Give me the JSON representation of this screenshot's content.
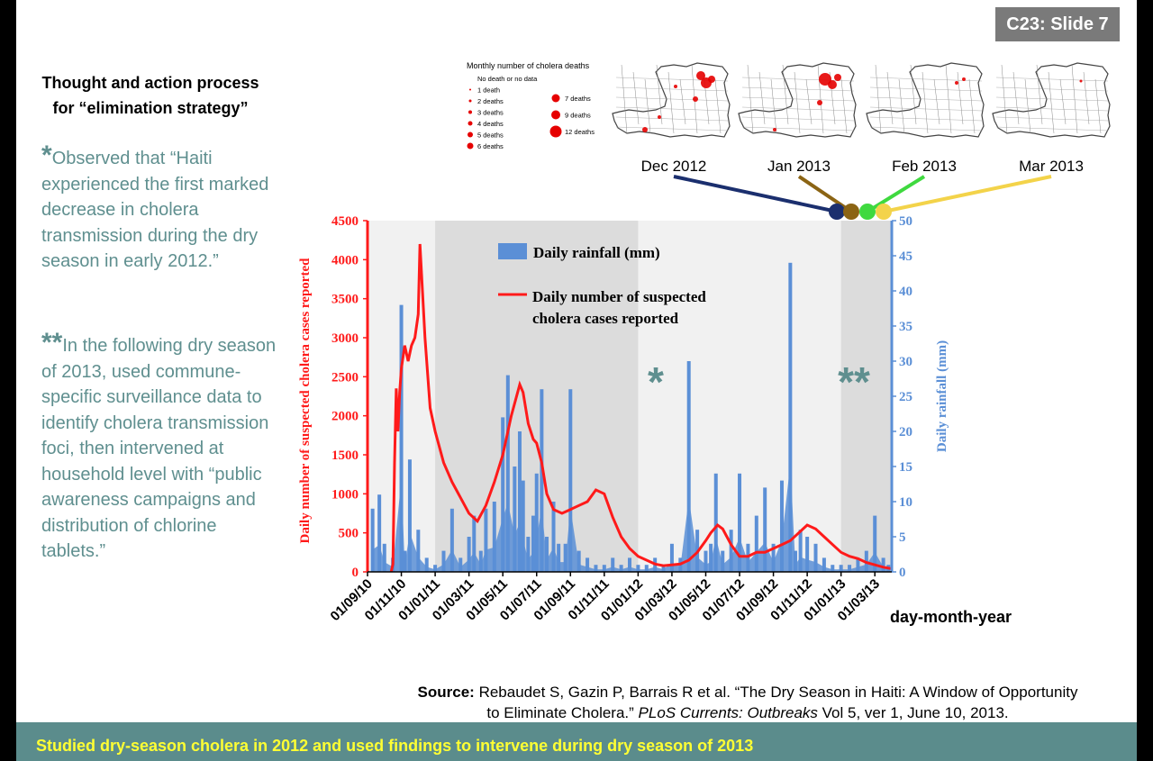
{
  "badge": "C23: Slide 7",
  "heading": {
    "line1": "Thought and action process",
    "line2": "for “elimination strategy”"
  },
  "note1": {
    "star": "*",
    "text": "Observed that “Haiti experienced the first marked decrease in cholera transmission during the dry season in early 2012.”"
  },
  "note2": {
    "star": "**",
    "text": "In the following dry season of 2013, used commune-specific surveillance data to identify cholera transmission foci, then intervened at household level with “public awareness campaigns and distribution of chlorine tablets.”"
  },
  "legend_map": {
    "title": "Monthly number of cholera deaths",
    "items": [
      "No death or no data",
      "1 death",
      "2 deaths",
      "3 deaths",
      "4 deaths",
      "5 deaths",
      "6 deaths",
      "7 deaths",
      "9 deaths",
      "12 deaths"
    ]
  },
  "maps": [
    {
      "label": "Dec 2012",
      "color": "#1b2f6e"
    },
    {
      "label": "Jan 2013",
      "color": "#8b6414"
    },
    {
      "label": "Feb 2013",
      "color": "#3fd93f"
    },
    {
      "label": "Mar 2013",
      "color": "#f3d34a"
    }
  ],
  "source": {
    "label": "Source:",
    "line1": "Rebaudet S, Gazin P, Barrais R et al. “The Dry Season in Haiti: A Window of Opportunity",
    "line2a": "to Eliminate Cholera.”",
    "journal": "PLoS Currents: Outbreaks",
    "line2b": "Vol 5, ver 1, June 10, 2013."
  },
  "footer": "Studied dry-season cholera in 2012 and used findings to intervene during dry season of 2013",
  "colors": {
    "cases": "#ff1a1a",
    "rain": "#5b8fd6",
    "accent": "#5f8f8f"
  },
  "chart_data": {
    "type": "line",
    "xlabel": "day-month-year",
    "ylabel_left": "Daily number of suspected cholera cases reported",
    "ylabel_right": "Daily rainfall (mm)",
    "ylim_left": [
      0,
      4500
    ],
    "ylim_right": [
      0,
      50
    ],
    "xlim_months": [
      0,
      31
    ],
    "x_ticks": [
      "01/09/10",
      "01/11/10",
      "01/01/11",
      "01/03/11",
      "01/05/11",
      "01/07/11",
      "01/09/11",
      "01/11/11",
      "01/01/12",
      "01/03/12",
      "01/05/12",
      "01/07/12",
      "01/09/12",
      "01/11/12",
      "01/01/13",
      "01/03/13"
    ],
    "y_ticks_left": [
      0,
      500,
      1000,
      1500,
      2000,
      2500,
      3000,
      3500,
      4000,
      4500
    ],
    "y_ticks_right": [
      0,
      5,
      10,
      15,
      20,
      25,
      30,
      35,
      40,
      45,
      50
    ],
    "legend": [
      "Daily rainfall (mm)",
      "Daily number of suspected cholera cases reported"
    ],
    "dry_season_shading": [
      [
        4,
        16
      ],
      [
        28,
        31
      ]
    ],
    "annotations": [
      {
        "text": "*",
        "month": 17
      },
      {
        "text": "**",
        "month": 29.5
      }
    ],
    "series": [
      {
        "name": "Daily number of suspected cholera cases reported",
        "month": [
          1.4,
          1.5,
          1.6,
          1.7,
          1.8,
          1.9,
          2.0,
          2.2,
          2.4,
          2.6,
          2.8,
          3.0,
          3.1,
          3.25,
          3.4,
          3.5,
          3.7,
          4.0,
          4.5,
          5.0,
          5.5,
          6.0,
          6.5,
          7.0,
          7.5,
          8.0,
          8.5,
          9.0,
          9.2,
          9.5,
          9.8,
          10.0,
          10.3,
          10.6,
          11.0,
          11.5,
          12.0,
          12.5,
          13.0,
          13.5,
          14.0,
          14.5,
          15.0,
          15.5,
          16.0,
          16.5,
          17.0,
          17.5,
          18.0,
          18.5,
          19.0,
          19.5,
          20.0,
          20.3,
          20.7,
          21.0,
          21.5,
          22.0,
          22.5,
          23.0,
          23.5,
          24.0,
          24.5,
          25.0,
          25.5,
          26.0,
          26.5,
          27.0,
          27.5,
          28.0,
          28.5,
          29.0,
          29.5,
          30.0,
          30.5,
          31.0
        ],
        "value": [
          0,
          100,
          1400,
          2350,
          1800,
          2300,
          2600,
          2900,
          2700,
          2900,
          3000,
          3300,
          4200,
          3600,
          3000,
          2700,
          2100,
          1800,
          1400,
          1150,
          950,
          750,
          650,
          850,
          1150,
          1500,
          2000,
          2400,
          2300,
          1900,
          1700,
          1650,
          1400,
          1000,
          800,
          750,
          800,
          850,
          900,
          1050,
          1000,
          700,
          450,
          300,
          200,
          150,
          100,
          80,
          90,
          100,
          150,
          250,
          400,
          500,
          600,
          550,
          350,
          200,
          200,
          250,
          250,
          300,
          350,
          400,
          500,
          600,
          550,
          450,
          350,
          250,
          200,
          170,
          120,
          90,
          60,
          40
        ]
      },
      {
        "name": "Daily rainfall (mm)",
        "month": [
          0.3,
          0.7,
          1.0,
          1.5,
          2.0,
          2.2,
          2.5,
          3.0,
          3.5,
          4.0,
          4.5,
          5.0,
          5.5,
          6.0,
          6.3,
          6.7,
          7.0,
          7.5,
          8.0,
          8.3,
          8.7,
          9.0,
          9.2,
          9.5,
          9.8,
          10.0,
          10.3,
          10.6,
          11.0,
          11.3,
          11.7,
          12.0,
          12.5,
          13.0,
          13.5,
          14.0,
          14.5,
          15.0,
          15.5,
          16.0,
          16.5,
          17.0,
          17.5,
          18.0,
          18.5,
          19.0,
          19.5,
          20.0,
          20.3,
          20.6,
          21.0,
          21.5,
          22.0,
          22.5,
          23.0,
          23.5,
          24.0,
          24.5,
          25.0,
          25.3,
          25.6,
          26.0,
          26.5,
          27.0,
          27.5,
          28.0,
          28.5,
          29.0,
          29.5,
          30.0,
          30.5,
          30.8
        ],
        "value": [
          9,
          11,
          4,
          2,
          38,
          3,
          16,
          6,
          2,
          1,
          3,
          9,
          2,
          5,
          8,
          3,
          9,
          10,
          22,
          28,
          15,
          20,
          13,
          5,
          8,
          14,
          26,
          5,
          10,
          4,
          4,
          26,
          3,
          2,
          1,
          1,
          2,
          1,
          2,
          1,
          1,
          2,
          1,
          4,
          2,
          30,
          6,
          3,
          4,
          14,
          3,
          6,
          14,
          4,
          8,
          12,
          4,
          13,
          44,
          3,
          6,
          5,
          4,
          2,
          1,
          1,
          1,
          2,
          3,
          8,
          2,
          1
        ]
      }
    ]
  }
}
